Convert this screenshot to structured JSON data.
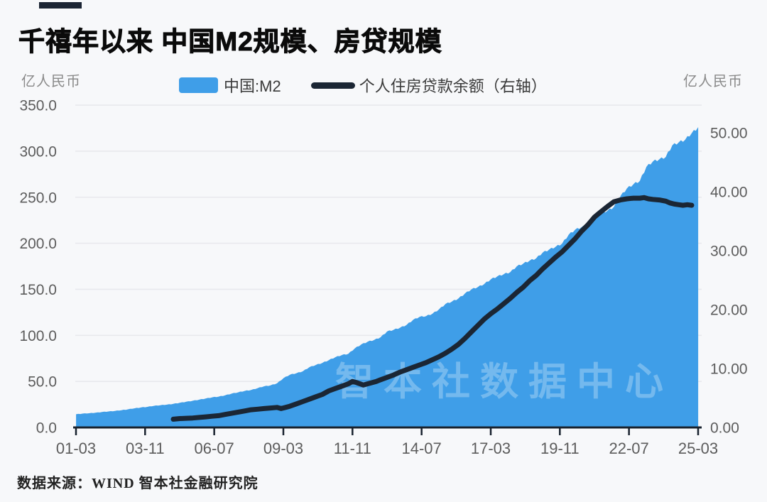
{
  "header": {
    "title": "千禧年以来 中国M2规模、房贷规模"
  },
  "units": {
    "left": "亿人民币",
    "right": "亿人民币"
  },
  "legend": {
    "items": [
      {
        "label": "中国:M2",
        "swatch": "area",
        "color": "#3f9ee8"
      },
      {
        "label": "个人住房贷款余额（右轴）",
        "swatch": "line",
        "color": "#1b2634"
      }
    ]
  },
  "watermark": {
    "text": "智本社数据中心"
  },
  "footer": {
    "source": "数据来源：WIND 智本社金融研究院"
  },
  "colors": {
    "area": "#3f9ee8",
    "line": "#1b2634",
    "grid": "#e8e9ed",
    "axis": "#18222e",
    "tick_label": "#5c5c5c",
    "watermark": "rgba(255,255,255,0.28)",
    "background": "#f7f8fa"
  },
  "chart_data": {
    "type": "area+line (dual axis combo)",
    "title": "千禧年以来 中国M2规模、房贷规模",
    "grid": "horizontal gridlines on",
    "legend_position": "top",
    "x_axis": {
      "tick_labels": [
        "01-03",
        "03-11",
        "06-07",
        "09-03",
        "11-11",
        "14-07",
        "17-03",
        "19-11",
        "22-07",
        "25-03"
      ],
      "tick_t": [
        2001.167,
        2003.833,
        2006.5,
        2009.167,
        2011.833,
        2014.5,
        2017.167,
        2019.833,
        2022.5,
        2025.167
      ]
    },
    "left_axis": {
      "unit": "亿人民币",
      "range": [
        0,
        350
      ],
      "ticks": [
        {
          "v": 0,
          "label": "0.0"
        },
        {
          "v": 50,
          "label": "50.0"
        },
        {
          "v": 100,
          "label": "100.0"
        },
        {
          "v": 150,
          "label": "150.0"
        },
        {
          "v": 200,
          "label": "200.0"
        },
        {
          "v": 250,
          "label": "250.0"
        },
        {
          "v": 300,
          "label": "300.0"
        },
        {
          "v": 350,
          "label": "350.0"
        }
      ]
    },
    "right_axis": {
      "unit": "亿人民币",
      "range": [
        0,
        54.7
      ],
      "ticks": [
        {
          "v": 0,
          "label": "0.00"
        },
        {
          "v": 10,
          "label": "10.00"
        },
        {
          "v": 20,
          "label": "20.00"
        },
        {
          "v": 30,
          "label": "30.00"
        },
        {
          "v": 40,
          "label": "40.00"
        },
        {
          "v": 50,
          "label": "50.00"
        }
      ]
    },
    "series": [
      {
        "name": "中国:M2",
        "type": "area",
        "axis": "left",
        "color": "#3f9ee8",
        "points": [
          [
            2001.17,
            14.1
          ],
          [
            2001.42,
            14.8
          ],
          [
            2001.67,
            15.2
          ],
          [
            2001.92,
            15.8
          ],
          [
            2002.17,
            16.5
          ],
          [
            2002.42,
            17.1
          ],
          [
            2002.67,
            17.7
          ],
          [
            2002.92,
            18.5
          ],
          [
            2003.17,
            19.4
          ],
          [
            2003.42,
            20.5
          ],
          [
            2003.67,
            21.4
          ],
          [
            2003.92,
            22.1
          ],
          [
            2004.17,
            23.2
          ],
          [
            2004.42,
            23.9
          ],
          [
            2004.67,
            24.5
          ],
          [
            2004.92,
            25.3
          ],
          [
            2005.17,
            26.5
          ],
          [
            2005.42,
            27.6
          ],
          [
            2005.67,
            28.7
          ],
          [
            2005.92,
            29.9
          ],
          [
            2006.17,
            31.1
          ],
          [
            2006.42,
            32.4
          ],
          [
            2006.67,
            33.2
          ],
          [
            2006.92,
            34.6
          ],
          [
            2007.17,
            36.4
          ],
          [
            2007.42,
            37.8
          ],
          [
            2007.67,
            39.3
          ],
          [
            2007.92,
            40.3
          ],
          [
            2008.17,
            42.3
          ],
          [
            2008.42,
            44.3
          ],
          [
            2008.67,
            45.3
          ],
          [
            2008.92,
            47.5
          ],
          [
            2009.17,
            53.1
          ],
          [
            2009.42,
            56.9
          ],
          [
            2009.67,
            58.5
          ],
          [
            2009.92,
            60.6
          ],
          [
            2010.17,
            65.0
          ],
          [
            2010.42,
            67.4
          ],
          [
            2010.67,
            69.6
          ],
          [
            2010.92,
            72.6
          ],
          [
            2011.17,
            75.8
          ],
          [
            2011.42,
            78.1
          ],
          [
            2011.67,
            79.4
          ],
          [
            2011.92,
            85.2
          ],
          [
            2012.17,
            89.6
          ],
          [
            2012.42,
            92.5
          ],
          [
            2012.67,
            94.4
          ],
          [
            2012.92,
            97.4
          ],
          [
            2013.17,
            103.6
          ],
          [
            2013.42,
            105.4
          ],
          [
            2013.67,
            107.7
          ],
          [
            2013.92,
            110.7
          ],
          [
            2014.17,
            116.1
          ],
          [
            2014.42,
            119.4
          ],
          [
            2014.67,
            120.2
          ],
          [
            2014.92,
            122.8
          ],
          [
            2015.17,
            127.5
          ],
          [
            2015.42,
            133.3
          ],
          [
            2015.67,
            136.0
          ],
          [
            2015.92,
            139.2
          ],
          [
            2016.17,
            144.6
          ],
          [
            2016.42,
            149.1
          ],
          [
            2016.67,
            151.6
          ],
          [
            2016.92,
            155.0
          ],
          [
            2017.17,
            160.0
          ],
          [
            2017.42,
            163.1
          ],
          [
            2017.67,
            165.6
          ],
          [
            2017.92,
            167.7
          ],
          [
            2018.17,
            174.0
          ],
          [
            2018.42,
            177.0
          ],
          [
            2018.67,
            180.2
          ],
          [
            2018.92,
            182.7
          ],
          [
            2019.17,
            188.9
          ],
          [
            2019.42,
            192.1
          ],
          [
            2019.67,
            195.2
          ],
          [
            2019.92,
            198.6
          ],
          [
            2020.17,
            208.1
          ],
          [
            2020.42,
            213.5
          ],
          [
            2020.67,
            216.4
          ],
          [
            2020.92,
            218.7
          ],
          [
            2021.17,
            227.7
          ],
          [
            2021.42,
            231.8
          ],
          [
            2021.67,
            234.0
          ],
          [
            2021.92,
            238.3
          ],
          [
            2022.17,
            249.8
          ],
          [
            2022.42,
            258.2
          ],
          [
            2022.67,
            262.7
          ],
          [
            2022.92,
            266.4
          ],
          [
            2023.17,
            281.5
          ],
          [
            2023.42,
            287.3
          ],
          [
            2023.67,
            289.7
          ],
          [
            2023.92,
            292.3
          ],
          [
            2024.17,
            304.8
          ],
          [
            2024.42,
            308.0
          ],
          [
            2024.67,
            311.0
          ],
          [
            2024.92,
            318.0
          ],
          [
            2025.08,
            322.0
          ],
          [
            2025.17,
            326.1
          ]
        ]
      },
      {
        "name": "个人住房贷款余额（右轴）",
        "type": "line",
        "axis": "right",
        "color": "#1b2634",
        "points": [
          [
            2004.92,
            1.4
          ],
          [
            2005.17,
            1.5
          ],
          [
            2005.42,
            1.55
          ],
          [
            2005.67,
            1.6
          ],
          [
            2005.92,
            1.7
          ],
          [
            2006.17,
            1.8
          ],
          [
            2006.42,
            1.9
          ],
          [
            2006.67,
            2.0
          ],
          [
            2006.92,
            2.2
          ],
          [
            2007.17,
            2.4
          ],
          [
            2007.42,
            2.6
          ],
          [
            2007.67,
            2.8
          ],
          [
            2007.92,
            3.0
          ],
          [
            2008.17,
            3.1
          ],
          [
            2008.42,
            3.2
          ],
          [
            2008.67,
            3.3
          ],
          [
            2008.92,
            3.4
          ],
          [
            2009.08,
            3.2
          ],
          [
            2009.25,
            3.4
          ],
          [
            2009.42,
            3.6
          ],
          [
            2009.67,
            4.0
          ],
          [
            2009.92,
            4.4
          ],
          [
            2010.17,
            4.8
          ],
          [
            2010.42,
            5.2
          ],
          [
            2010.67,
            5.6
          ],
          [
            2010.92,
            6.2
          ],
          [
            2011.17,
            6.6
          ],
          [
            2011.42,
            7.0
          ],
          [
            2011.67,
            7.4
          ],
          [
            2011.83,
            7.8
          ],
          [
            2012.0,
            7.6
          ],
          [
            2012.25,
            7.2
          ],
          [
            2012.5,
            7.5
          ],
          [
            2012.75,
            7.8
          ],
          [
            2012.92,
            8.1
          ],
          [
            2013.17,
            8.5
          ],
          [
            2013.42,
            8.9
          ],
          [
            2013.67,
            9.4
          ],
          [
            2013.92,
            9.8
          ],
          [
            2014.17,
            10.2
          ],
          [
            2014.42,
            10.6
          ],
          [
            2014.67,
            11.0
          ],
          [
            2014.92,
            11.5
          ],
          [
            2015.17,
            12.0
          ],
          [
            2015.42,
            12.6
          ],
          [
            2015.67,
            13.3
          ],
          [
            2015.92,
            14.1
          ],
          [
            2016.17,
            15.1
          ],
          [
            2016.42,
            16.2
          ],
          [
            2016.67,
            17.3
          ],
          [
            2016.92,
            18.4
          ],
          [
            2017.17,
            19.3
          ],
          [
            2017.42,
            20.1
          ],
          [
            2017.67,
            21.0
          ],
          [
            2017.92,
            21.9
          ],
          [
            2018.17,
            22.9
          ],
          [
            2018.42,
            23.8
          ],
          [
            2018.67,
            24.9
          ],
          [
            2018.92,
            25.8
          ],
          [
            2019.17,
            26.9
          ],
          [
            2019.42,
            27.9
          ],
          [
            2019.67,
            28.9
          ],
          [
            2019.92,
            29.8
          ],
          [
            2020.17,
            30.9
          ],
          [
            2020.42,
            32.0
          ],
          [
            2020.67,
            33.3
          ],
          [
            2020.92,
            34.4
          ],
          [
            2021.17,
            35.7
          ],
          [
            2021.42,
            36.6
          ],
          [
            2021.67,
            37.5
          ],
          [
            2021.92,
            38.3
          ],
          [
            2022.17,
            38.6
          ],
          [
            2022.42,
            38.8
          ],
          [
            2022.67,
            38.9
          ],
          [
            2022.92,
            38.9
          ],
          [
            2023.08,
            39.0
          ],
          [
            2023.25,
            38.8
          ],
          [
            2023.42,
            38.7
          ],
          [
            2023.67,
            38.6
          ],
          [
            2023.92,
            38.4
          ],
          [
            2024.08,
            38.1
          ],
          [
            2024.25,
            37.9
          ],
          [
            2024.42,
            37.8
          ],
          [
            2024.58,
            37.7
          ],
          [
            2024.75,
            37.8
          ],
          [
            2024.92,
            37.7
          ]
        ]
      }
    ]
  }
}
